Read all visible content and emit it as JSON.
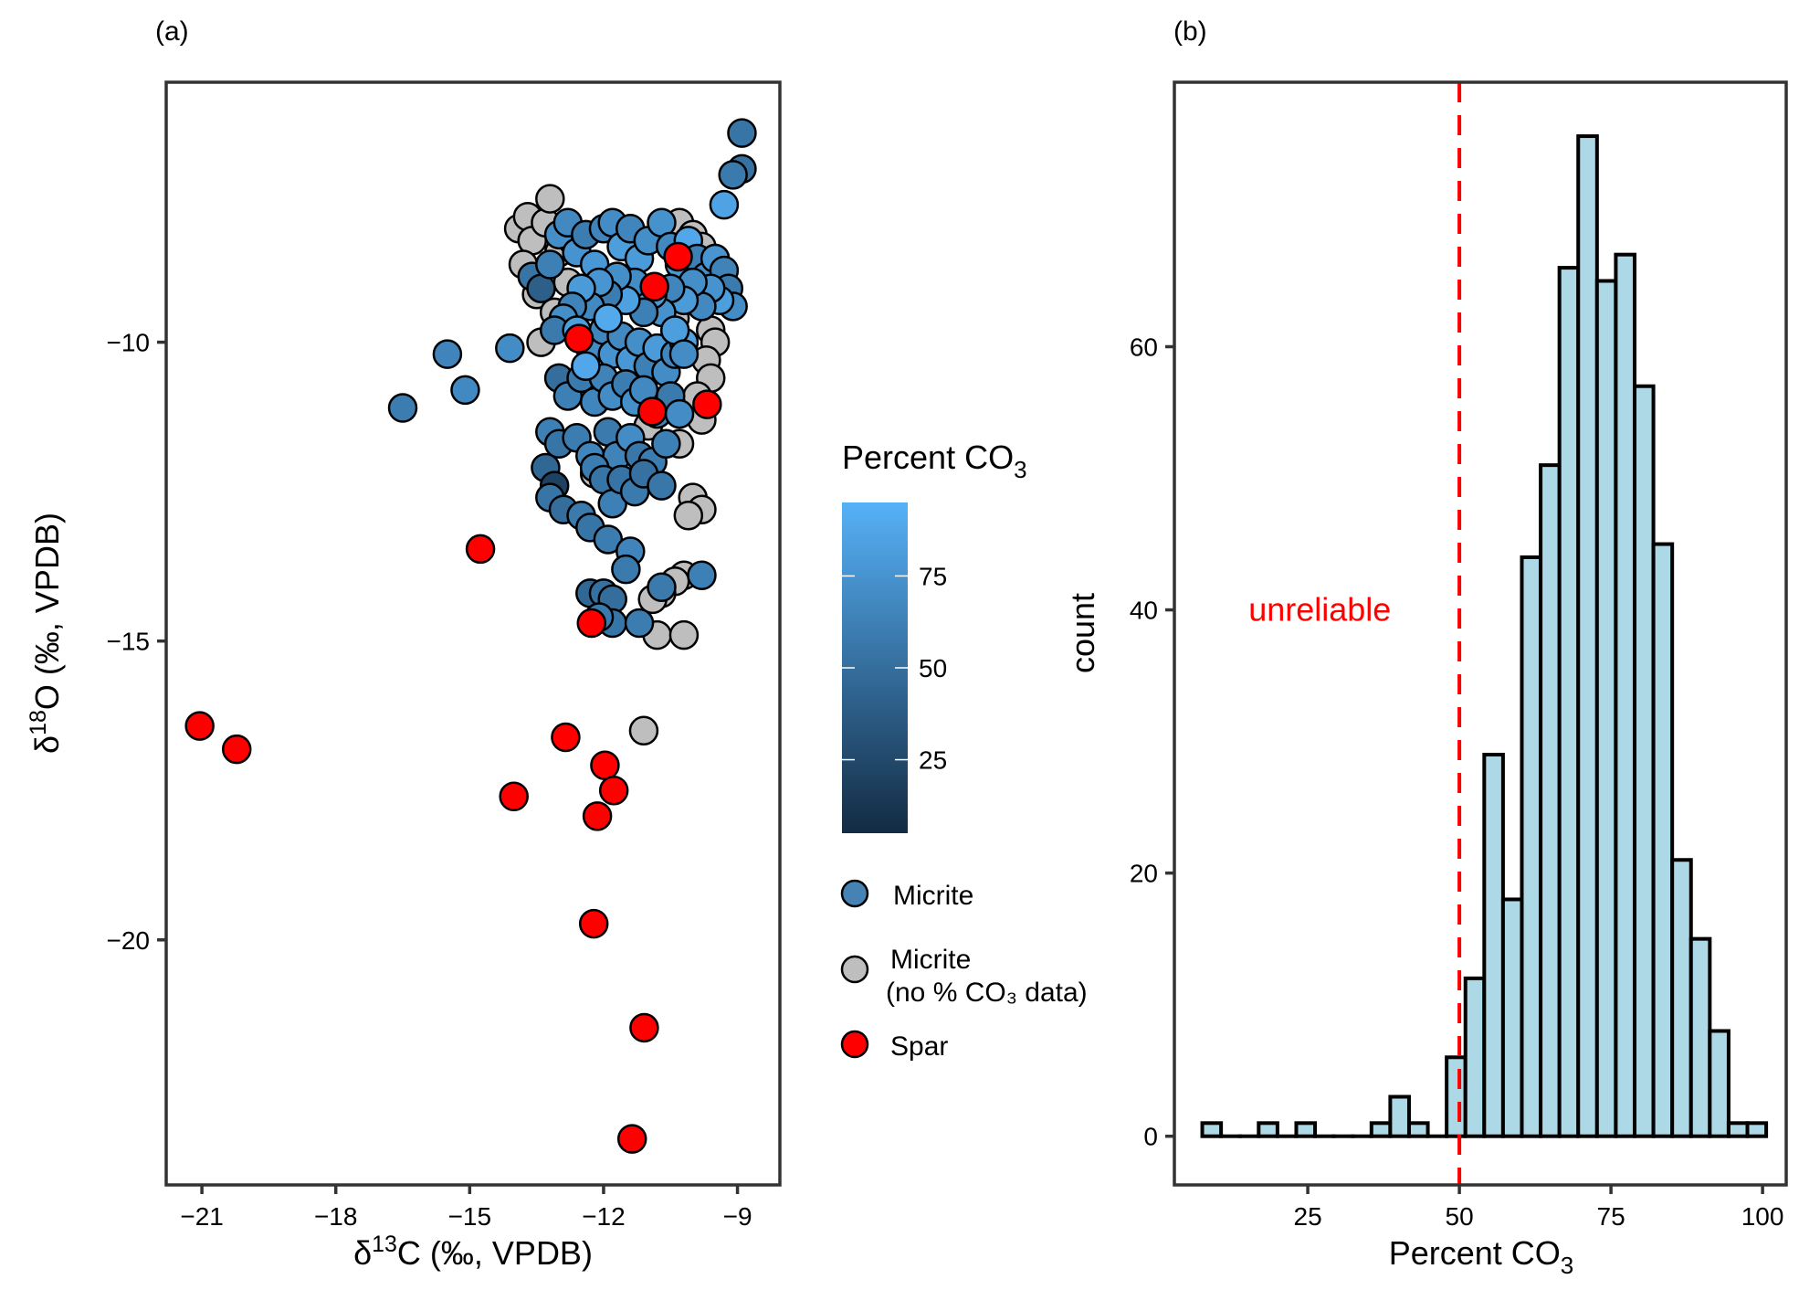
{
  "chart_data": [
    {
      "type": "scatter",
      "panel_tag": "(a)",
      "xlabel": {
        "prefix": "δ",
        "sup": "13",
        "main": "C (‰, VPDB)"
      },
      "ylabel": {
        "prefix": "δ",
        "sup": "18",
        "main": "O (‰, VPDB)"
      },
      "xlim": [
        -21.8,
        -8.05
      ],
      "ylim": [
        -24.1,
        -5.65
      ],
      "xticks": [
        -21,
        -18,
        -15,
        -12,
        -9
      ],
      "xtick_labels": [
        "−21",
        "−18",
        "−15",
        "−12",
        "−9"
      ],
      "yticks": [
        -10,
        -15,
        -20
      ],
      "ytick_labels": [
        "−10",
        "−15",
        "−20"
      ],
      "grid": false,
      "colorbar": {
        "title_main": "Percent CO",
        "title_sub": "3",
        "low_color": "#132B43",
        "high_color": "#56B1F7",
        "range": [
          5,
          95
        ],
        "ticks": [
          25,
          50,
          75
        ],
        "tick_labels": [
          "25",
          "50",
          "75"
        ]
      },
      "legend": {
        "placement": "right",
        "entries": [
          {
            "label": "Micrite",
            "label2": "",
            "color": "#4682B4"
          },
          {
            "label": "Micrite",
            "label2": "(no % CO₃ data)",
            "color": "#BEBEBE"
          },
          {
            "label": "Spar",
            "label2": "",
            "color": "#FF0000"
          }
        ]
      },
      "series": [
        {
          "name": "Micrite (no % CO3 data)",
          "color": "#BEBEBE",
          "points": [
            [
              -13.9,
              -8.1
            ],
            [
              -13.7,
              -7.9
            ],
            [
              -13.6,
              -8.3
            ],
            [
              -13.3,
              -8.0
            ],
            [
              -13.2,
              -7.6
            ],
            [
              -13.0,
              -8.5
            ],
            [
              -13.8,
              -8.7
            ],
            [
              -13.5,
              -9.2
            ],
            [
              -13.1,
              -9.5
            ],
            [
              -13.4,
              -10.0
            ],
            [
              -12.8,
              -9.0
            ],
            [
              -12.7,
              -8.3
            ],
            [
              -10.3,
              -8.0
            ],
            [
              -10.0,
              -8.2
            ],
            [
              -9.8,
              -8.4
            ],
            [
              -9.5,
              -8.6
            ],
            [
              -9.9,
              -9.3
            ],
            [
              -9.6,
              -9.8
            ],
            [
              -9.5,
              -10.0
            ],
            [
              -9.7,
              -10.3
            ],
            [
              -9.6,
              -10.6
            ],
            [
              -9.9,
              -10.9
            ],
            [
              -9.8,
              -11.3
            ],
            [
              -10.3,
              -11.7
            ],
            [
              -10.0,
              -12.6
            ],
            [
              -9.8,
              -12.8
            ],
            [
              -10.1,
              -12.9
            ],
            [
              -10.2,
              -13.9
            ],
            [
              -10.4,
              -14.0
            ],
            [
              -10.7,
              -14.2
            ],
            [
              -10.9,
              -14.3
            ],
            [
              -10.8,
              -14.9
            ],
            [
              -10.2,
              -14.9
            ],
            [
              -11.1,
              -16.5
            ],
            [
              -10.8,
              -9.2
            ],
            [
              -10.4,
              -9.6
            ],
            [
              -12.2,
              -12.2
            ],
            [
              -11.0,
              -11.4
            ]
          ]
        },
        {
          "name": "Micrite",
          "colored_by": "Percent CO3",
          "points": [
            [
              -8.9,
              -6.5,
              55
            ],
            [
              -8.9,
              -7.1,
              52
            ],
            [
              -9.1,
              -7.2,
              58
            ],
            [
              -9.3,
              -7.7,
              85
            ],
            [
              -16.5,
              -11.1,
              60
            ],
            [
              -15.5,
              -10.2,
              65
            ],
            [
              -15.1,
              -10.8,
              68
            ],
            [
              -14.1,
              -10.1,
              70
            ],
            [
              -13.6,
              -8.9,
              55
            ],
            [
              -13.4,
              -9.1,
              40
            ],
            [
              -13.2,
              -8.7,
              62
            ],
            [
              -13.0,
              -8.2,
              72
            ],
            [
              -12.8,
              -8.0,
              68
            ],
            [
              -12.6,
              -8.5,
              75
            ],
            [
              -12.4,
              -8.2,
              60
            ],
            [
              -12.2,
              -8.7,
              78
            ],
            [
              -12.0,
              -8.1,
              65
            ],
            [
              -11.8,
              -8.0,
              70
            ],
            [
              -11.6,
              -8.4,
              82
            ],
            [
              -11.4,
              -8.1,
              66
            ],
            [
              -11.2,
              -8.6,
              80
            ],
            [
              -11.0,
              -8.3,
              72
            ],
            [
              -10.7,
              -8.0,
              74
            ],
            [
              -10.5,
              -8.4,
              68
            ],
            [
              -10.3,
              -8.7,
              79
            ],
            [
              -10.1,
              -8.3,
              88
            ],
            [
              -9.9,
              -8.6,
              62
            ],
            [
              -9.7,
              -8.9,
              70
            ],
            [
              -9.5,
              -8.6,
              76
            ],
            [
              -9.3,
              -8.8,
              64
            ],
            [
              -9.2,
              -9.1,
              58
            ],
            [
              -9.1,
              -9.4,
              70
            ],
            [
              -9.4,
              -9.3,
              82
            ],
            [
              -9.6,
              -9.1,
              75
            ],
            [
              -9.8,
              -9.4,
              68
            ],
            [
              -10.0,
              -9.0,
              72
            ],
            [
              -10.2,
              -9.3,
              80
            ],
            [
              -10.5,
              -9.1,
              66
            ],
            [
              -10.7,
              -9.5,
              74
            ],
            [
              -10.9,
              -9.2,
              78
            ],
            [
              -11.1,
              -9.5,
              62
            ],
            [
              -11.3,
              -9.0,
              70
            ],
            [
              -11.5,
              -9.3,
              84
            ],
            [
              -11.7,
              -8.9,
              72
            ],
            [
              -11.9,
              -9.2,
              60
            ],
            [
              -12.1,
              -9.0,
              76
            ],
            [
              -12.3,
              -9.4,
              68
            ],
            [
              -12.5,
              -9.1,
              80
            ],
            [
              -12.7,
              -9.4,
              64
            ],
            [
              -12.9,
              -9.6,
              72
            ],
            [
              -13.1,
              -9.8,
              58
            ],
            [
              -12.6,
              -9.8,
              82
            ],
            [
              -12.3,
              -10.1,
              70
            ],
            [
              -12.0,
              -9.8,
              66
            ],
            [
              -11.8,
              -10.2,
              75
            ],
            [
              -11.6,
              -9.9,
              68
            ],
            [
              -11.4,
              -10.3,
              78
            ],
            [
              -11.2,
              -10.0,
              72
            ],
            [
              -11.0,
              -10.4,
              62
            ],
            [
              -10.8,
              -10.1,
              80
            ],
            [
              -10.6,
              -10.5,
              70
            ],
            [
              -10.4,
              -10.2,
              66
            ],
            [
              -10.2,
              -10.0,
              85
            ],
            [
              -13.0,
              -10.6,
              50
            ],
            [
              -12.8,
              -10.9,
              62
            ],
            [
              -12.5,
              -10.6,
              58
            ],
            [
              -12.2,
              -11.0,
              66
            ],
            [
              -12.0,
              -10.6,
              64
            ],
            [
              -11.8,
              -10.9,
              70
            ],
            [
              -11.5,
              -10.7,
              60
            ],
            [
              -11.3,
              -11.0,
              72
            ],
            [
              -11.1,
              -10.8,
              68
            ],
            [
              -10.8,
              -11.2,
              64
            ],
            [
              -10.5,
              -10.9,
              58
            ],
            [
              -10.3,
              -11.2,
              70
            ],
            [
              -13.2,
              -11.5,
              62
            ],
            [
              -13.0,
              -11.7,
              55
            ],
            [
              -12.6,
              -11.6,
              60
            ],
            [
              -12.3,
              -11.9,
              66
            ],
            [
              -11.9,
              -11.5,
              58
            ],
            [
              -11.7,
              -11.9,
              64
            ],
            [
              -11.4,
              -11.6,
              70
            ],
            [
              -11.2,
              -11.9,
              56
            ],
            [
              -10.9,
              -12.0,
              60
            ],
            [
              -10.6,
              -11.7,
              62
            ],
            [
              -13.3,
              -12.1,
              45
            ],
            [
              -13.1,
              -12.4,
              20
            ],
            [
              -13.2,
              -12.6,
              55
            ],
            [
              -12.9,
              -12.8,
              50
            ],
            [
              -12.5,
              -12.9,
              58
            ],
            [
              -12.2,
              -12.1,
              60
            ],
            [
              -12.0,
              -12.3,
              55
            ],
            [
              -11.8,
              -12.7,
              62
            ],
            [
              -11.6,
              -12.3,
              54
            ],
            [
              -11.3,
              -12.5,
              58
            ],
            [
              -11.1,
              -12.2,
              52
            ],
            [
              -10.7,
              -12.4,
              56
            ],
            [
              -12.3,
              -13.1,
              55
            ],
            [
              -11.9,
              -13.3,
              60
            ],
            [
              -11.4,
              -13.5,
              65
            ],
            [
              -11.5,
              -13.8,
              58
            ],
            [
              -12.3,
              -14.2,
              45
            ],
            [
              -12.0,
              -14.2,
              52
            ],
            [
              -11.8,
              -14.3,
              50
            ],
            [
              -11.8,
              -14.7,
              55
            ],
            [
              -11.2,
              -14.7,
              60
            ],
            [
              -10.7,
              -14.1,
              58
            ],
            [
              -9.8,
              -13.9,
              62
            ],
            [
              -12.1,
              -14.6,
              58
            ],
            [
              -10.4,
              -9.8,
              82
            ],
            [
              -10.2,
              -10.2,
              70
            ],
            [
              -12.4,
              -10.4,
              88
            ],
            [
              -11.9,
              -9.6,
              90
            ]
          ]
        },
        {
          "name": "Spar",
          "color": "#FF0000",
          "points": [
            [
              -21.05,
              -16.42
            ],
            [
              -20.22,
              -16.81
            ],
            [
              -14.76,
              -13.46
            ],
            [
              -14.01,
              -17.6
            ],
            [
              -12.85,
              -16.61
            ],
            [
              -11.97,
              -17.08
            ],
            [
              -11.77,
              -17.5
            ],
            [
              -12.14,
              -17.93
            ],
            [
              -12.22,
              -19.73
            ],
            [
              -11.09,
              -21.47
            ],
            [
              -11.36,
              -23.33
            ],
            [
              -12.27,
              -14.7
            ],
            [
              -12.55,
              -9.94
            ],
            [
              -10.86,
              -9.07
            ],
            [
              -10.33,
              -8.57
            ],
            [
              -10.91,
              -11.16
            ],
            [
              -9.68,
              -11.04
            ]
          ]
        }
      ]
    },
    {
      "type": "bar",
      "subtype": "histogram",
      "panel_tag": "(b)",
      "xlabel": {
        "main": "Percent CO",
        "sub": "3"
      },
      "ylabel": "count",
      "xlim": [
        3.0,
        103.9
      ],
      "ylim": [
        -3.7,
        80.1
      ],
      "xticks": [
        25,
        50,
        75,
        100
      ],
      "xtick_labels": [
        "25",
        "50",
        "75",
        "100"
      ],
      "yticks": [
        0,
        20,
        40,
        60
      ],
      "ytick_labels": [
        "0",
        "20",
        "40",
        "60"
      ],
      "grid": false,
      "bin_start": 7.6,
      "bin_width": 3.1,
      "counts": [
        1,
        0,
        0,
        1,
        0,
        1,
        0,
        0,
        0,
        1,
        3,
        1,
        0,
        6,
        12,
        29,
        18,
        44,
        51,
        66,
        76,
        65,
        67,
        57,
        45,
        21,
        15,
        8,
        1,
        1
      ],
      "fill_color": "#ADD8E6",
      "edge_color": "#000000",
      "vline": {
        "x": 50,
        "color": "#FF0000",
        "style": "dashed"
      },
      "annotations": [
        {
          "text": "unreliable",
          "x": 30,
          "y": 40,
          "color": "#FF0000"
        }
      ]
    }
  ]
}
